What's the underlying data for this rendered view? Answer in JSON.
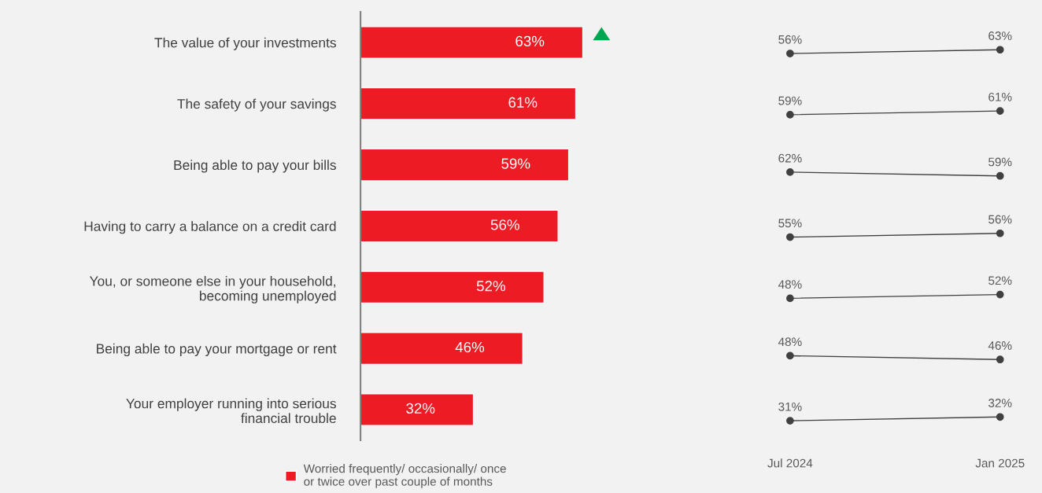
{
  "chart_data": [
    {
      "type": "bar",
      "orientation": "horizontal",
      "categories": [
        "The value of your investments",
        "The safety of your savings",
        "Being able to pay your bills",
        "Having to carry a balance on a credit card",
        "You, or someone else in your household,\nbecoming unemployed",
        "Being able to pay your mortgage or rent",
        "Your employer running into serious\nfinancial trouble"
      ],
      "series": [
        {
          "name": "Worried frequently/ occasionally/ once\nor twice over past couple of months",
          "color": "#ed1c24",
          "values": [
            63,
            61,
            59,
            56,
            52,
            46,
            32
          ],
          "value_labels": [
            "63%",
            "61%",
            "59%",
            "56%",
            "52%",
            "46%",
            "32%"
          ]
        }
      ],
      "legend": "bottom",
      "tick_labels": "y"
    },
    {
      "type": "line",
      "categories": [
        null,
        null
      ],
      "series": [
        {
          "color": "#404040",
          "values": [
            56,
            63
          ],
          "value_labels": [
            "56%",
            "63%"
          ]
        }
      ],
      "marker": "circle"
    },
    {
      "type": "line",
      "categories": [
        null,
        null
      ],
      "series": [
        {
          "color": "#404040",
          "values": [
            59,
            61
          ],
          "value_labels": [
            "59%",
            "61%"
          ]
        }
      ],
      "marker": "circle"
    },
    {
      "type": "line",
      "categories": [
        null,
        null
      ],
      "series": [
        {
          "color": "#404040",
          "values": [
            62,
            59
          ],
          "value_labels": [
            "62%",
            "59%"
          ]
        }
      ],
      "marker": "circle"
    },
    {
      "type": "line",
      "categories": [
        null,
        null
      ],
      "series": [
        {
          "color": "#404040",
          "values": [
            55,
            56
          ],
          "value_labels": [
            "55%",
            "56%"
          ]
        }
      ],
      "marker": "circle"
    },
    {
      "type": "line",
      "categories": [
        null,
        null
      ],
      "series": [
        {
          "color": "#404040",
          "values": [
            48,
            52
          ],
          "value_labels": [
            "48%",
            "52%"
          ]
        }
      ],
      "marker": "circle"
    },
    {
      "type": "line",
      "categories": [
        null,
        null
      ],
      "series": [
        {
          "color": "#404040",
          "values": [
            48,
            46
          ],
          "value_labels": [
            "48%",
            "46%"
          ]
        }
      ],
      "marker": "circle"
    },
    {
      "type": "line",
      "categories": [
        "Jul 2024",
        "Jan 2025"
      ],
      "series": [
        {
          "color": "#404040",
          "values": [
            31,
            32
          ],
          "value_labels": [
            "31%",
            "32%"
          ]
        }
      ],
      "marker": "circle"
    }
  ]
}
